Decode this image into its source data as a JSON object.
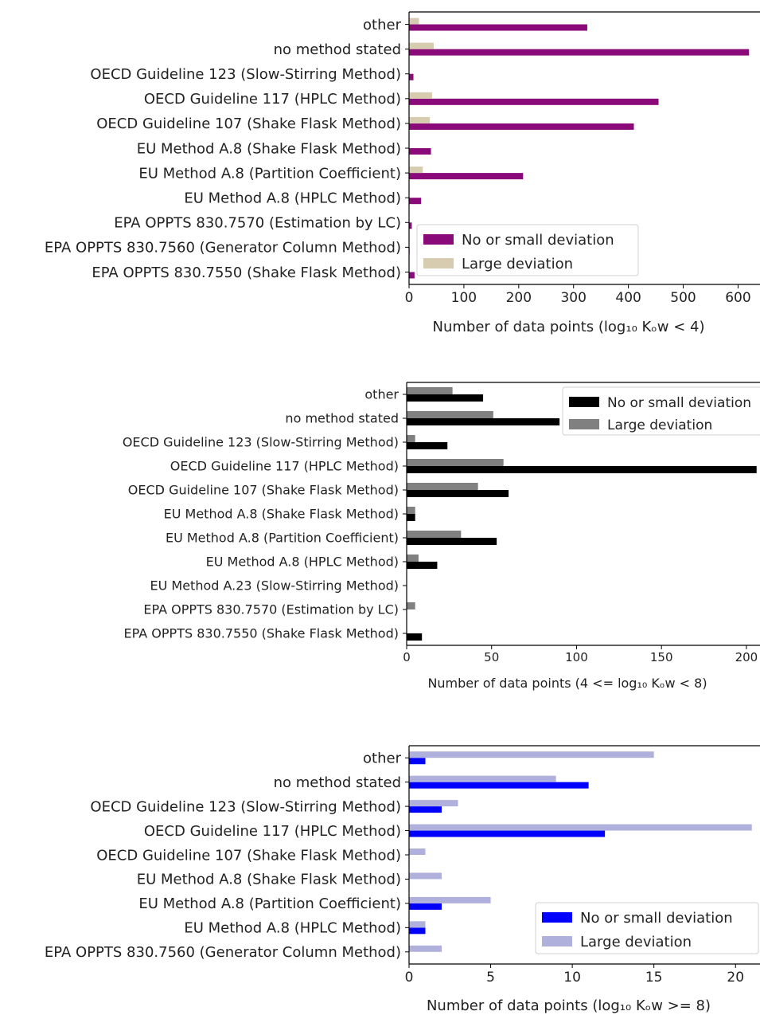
{
  "chart_data": [
    {
      "type": "bar",
      "orientation": "horizontal",
      "categories": [
        "other",
        "no method stated",
        "OECD Guideline 123 (Slow-Stirring Method)",
        "OECD Guideline 117 (HPLC Method)",
        "OECD Guideline 107 (Shake Flask Method)",
        "EU Method A.8 (Shake Flask Method)",
        "EU Method A.8 (Partition Coefficient)",
        "EU Method A.8 (HPLC Method)",
        "EPA OPPTS 830.7570 (Estimation by LC)",
        "EPA OPPTS 830.7560 (Generator Column Method)",
        "EPA OPPTS 830.7550 (Shake Flask Method)"
      ],
      "series": [
        {
          "name": "No or small deviation",
          "color": "#8b0a7a",
          "values": [
            325,
            620,
            8,
            455,
            410,
            40,
            208,
            22,
            5,
            1,
            10
          ]
        },
        {
          "name": "Large deviation",
          "color": "#d8ccb0",
          "values": [
            18,
            45,
            0,
            42,
            38,
            0,
            25,
            0,
            0,
            0,
            0
          ]
        }
      ],
      "xlabel": "Number of data points (log₁₀ Kₒᴡ < 4)",
      "xlim": [
        0,
        640
      ],
      "xticks": [
        0,
        100,
        200,
        300,
        400,
        500,
        600
      ],
      "legend_position": "lower-right",
      "grid": false
    },
    {
      "type": "bar",
      "orientation": "horizontal",
      "categories": [
        "other",
        "no method stated",
        "OECD Guideline 123 (Slow-Stirring Method)",
        "OECD Guideline 117 (HPLC Method)",
        "OECD Guideline 107 (Shake Flask Method)",
        "EU Method A.8 (Shake Flask Method)",
        "EU Method A.8 (Partition Coefficient)",
        "EU Method A.8 (HPLC Method)",
        "EU Method A.23 (Slow-Stirring Method)",
        "EPA OPPTS 830.7570 (Estimation by LC)",
        "EPA OPPTS 830.7550 (Shake Flask Method)"
      ],
      "series": [
        {
          "name": "No or small deviation",
          "color": "#000000",
          "values": [
            45,
            90,
            24,
            206,
            60,
            5,
            53,
            18,
            0,
            0,
            9
          ]
        },
        {
          "name": "Large deviation",
          "color": "#808080",
          "values": [
            27,
            51,
            5,
            57,
            42,
            5,
            32,
            7,
            0,
            5,
            0
          ]
        }
      ],
      "xlabel": "Number of data points (4 <= log₁₀ Kₒᴡ < 8)",
      "xlim": [
        0,
        208
      ],
      "xticks": [
        0,
        50,
        100,
        150,
        200
      ],
      "legend_position": "top-right",
      "grid": false
    },
    {
      "type": "bar",
      "orientation": "horizontal",
      "categories": [
        "other",
        "no method stated",
        "OECD Guideline 123 (Slow-Stirring Method)",
        "OECD Guideline 117 (HPLC Method)",
        "OECD Guideline 107 (Shake Flask Method)",
        "EU Method A.8 (Shake Flask Method)",
        "EU Method A.8 (Partition Coefficient)",
        "EU Method A.8 (HPLC Method)",
        "EPA OPPTS 830.7560 (Generator Column Method)"
      ],
      "series": [
        {
          "name": "No or small deviation",
          "color": "#0000ff",
          "values": [
            1,
            11,
            2,
            12,
            0,
            0,
            2,
            1,
            0
          ]
        },
        {
          "name": "Large deviation",
          "color": "#b0b0dc",
          "values": [
            15,
            9,
            3,
            21,
            1,
            2,
            5,
            1,
            2
          ]
        }
      ],
      "xlabel": "Number of data points (log₁₀ Kₒᴡ >= 8)",
      "xlim": [
        0,
        21.5
      ],
      "xticks": [
        0,
        5,
        10,
        15,
        20
      ],
      "legend_position": "lower-right",
      "grid": false
    }
  ]
}
